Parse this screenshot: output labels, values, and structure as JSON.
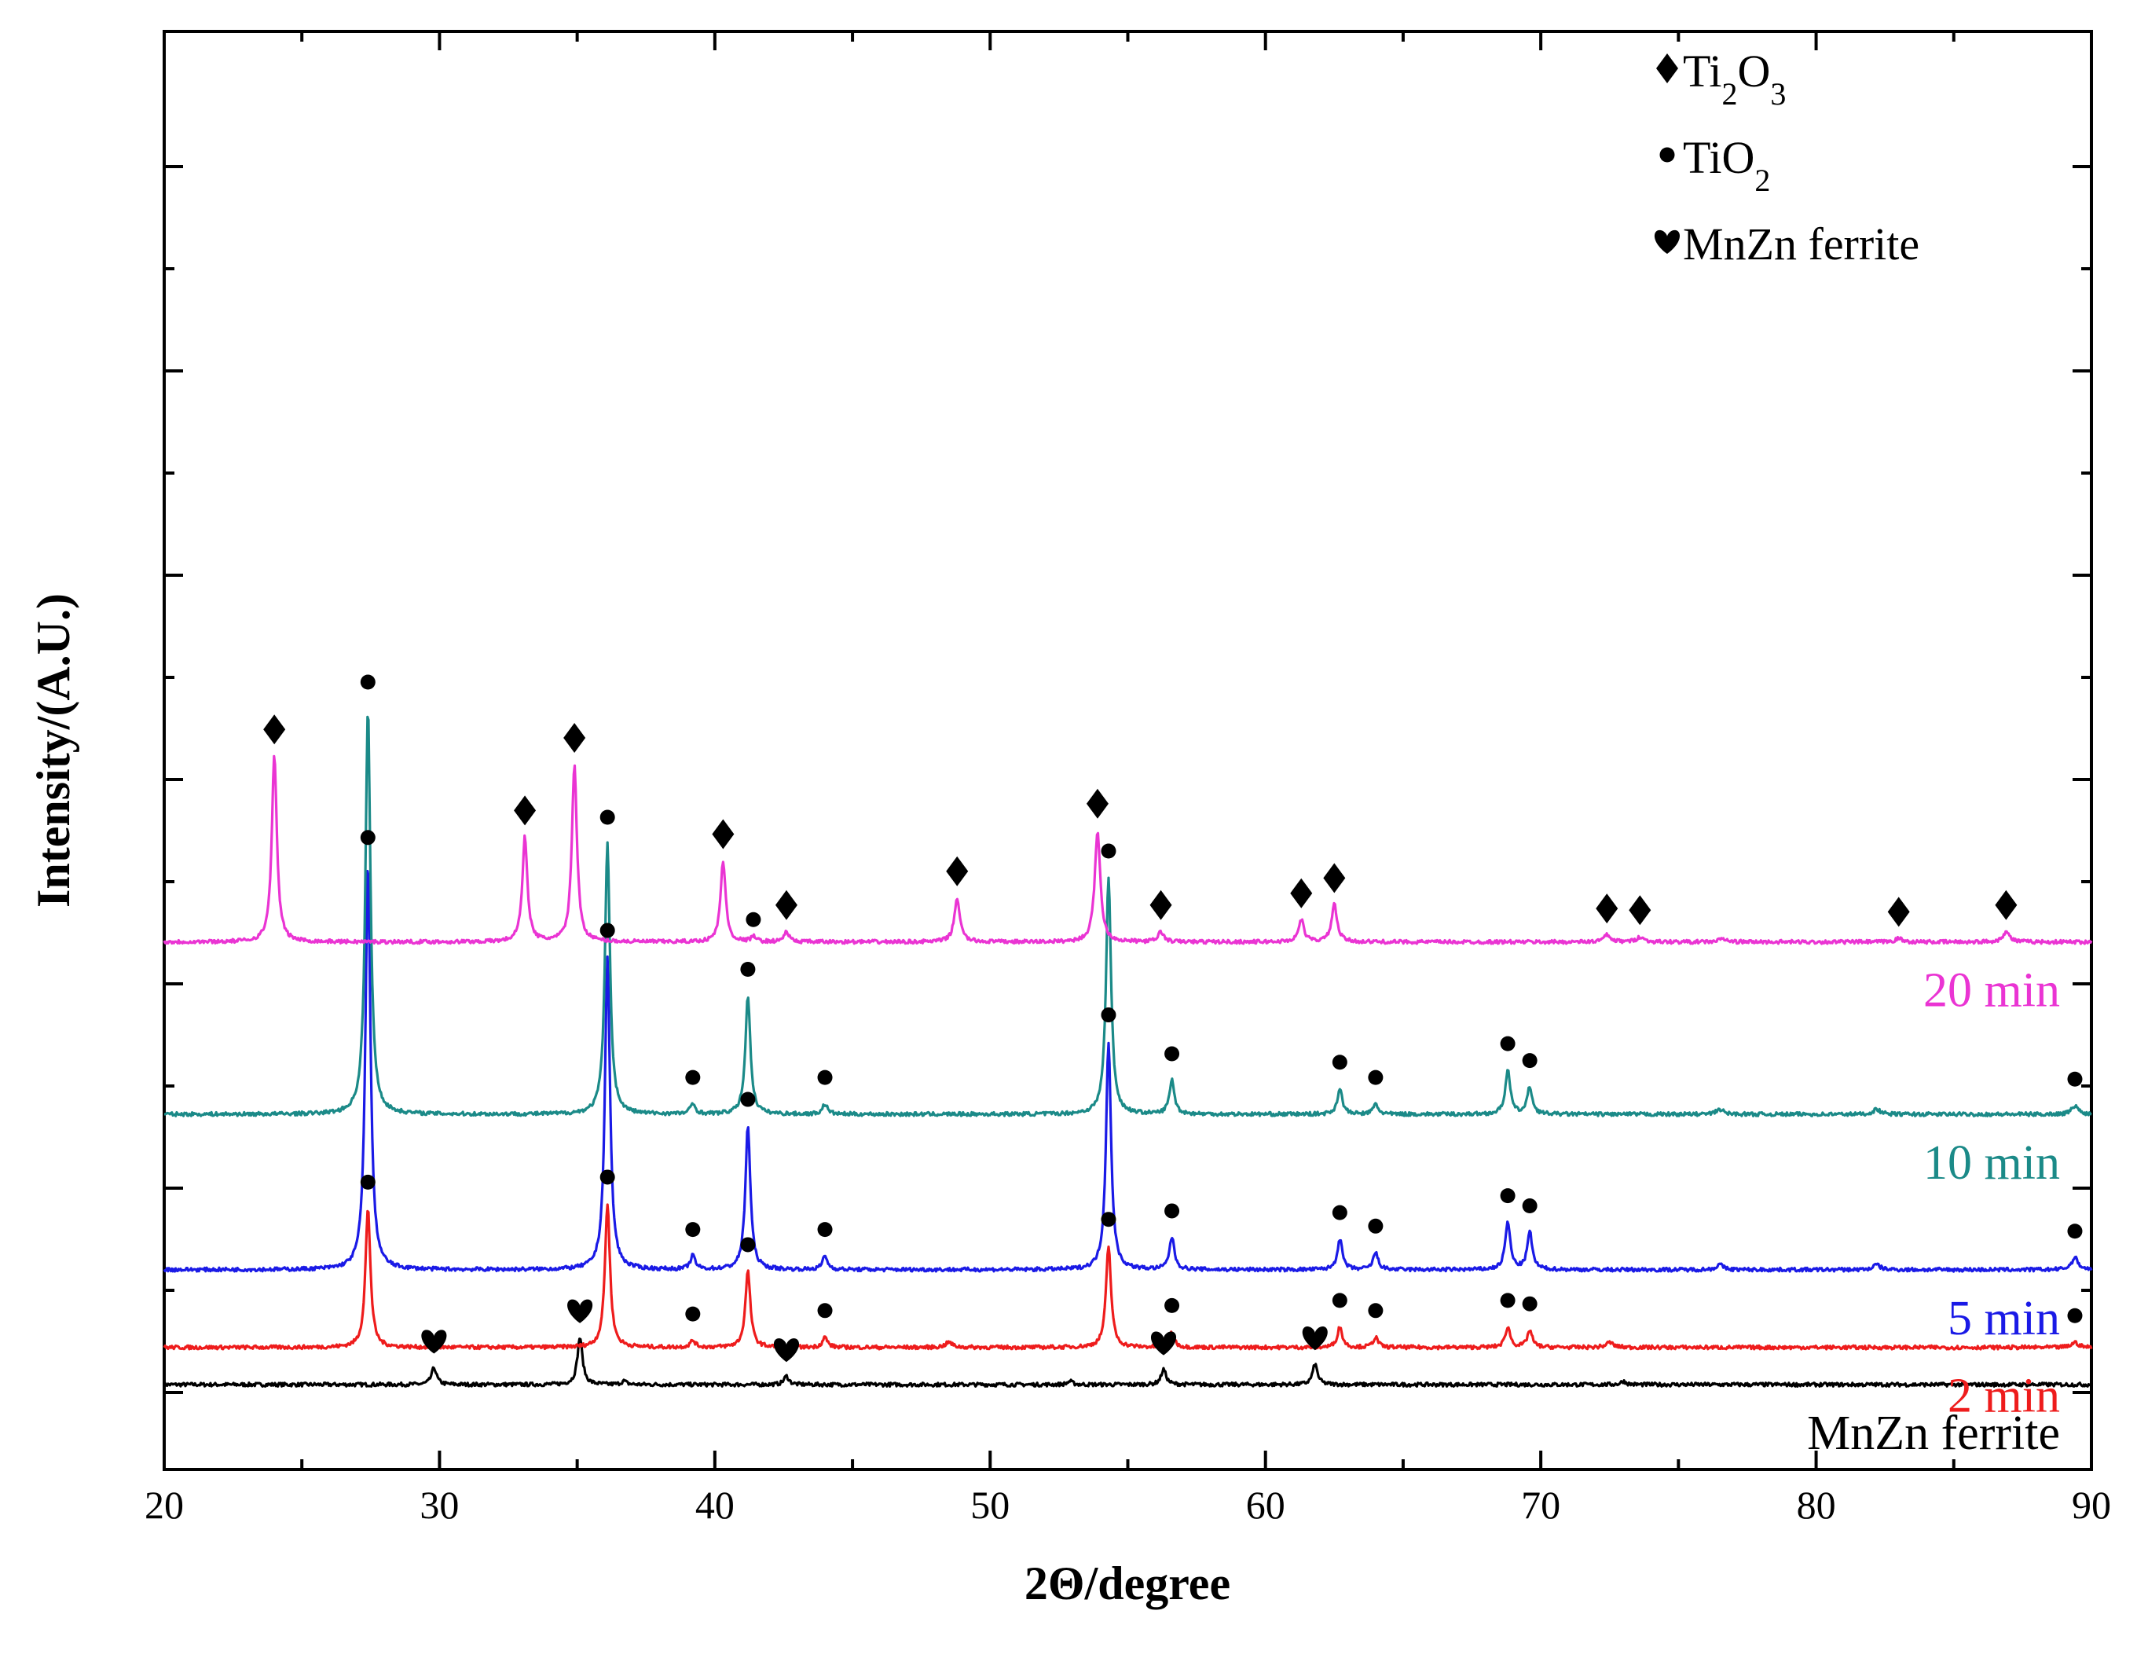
{
  "chart_data": {
    "type": "line",
    "xlabel": "2Θ/degree",
    "ylabel": "Intensity/(A.U.)",
    "xlim": [
      20,
      90
    ],
    "x_ticks": [
      20,
      30,
      40,
      50,
      60,
      70,
      80,
      90
    ],
    "y_tick_labels_shown": false,
    "legend": {
      "placement": "top-right",
      "entries": [
        {
          "marker": "diamond",
          "text": "Ti",
          "sub1": "2",
          "text2": "O",
          "sub2": "3"
        },
        {
          "marker": "circle",
          "text": "TiO",
          "sub1": "2",
          "text2": "",
          "sub2": ""
        },
        {
          "marker": "heart",
          "text": "MnZn ferrite",
          "sub1": "",
          "text2": "",
          "sub2": ""
        }
      ]
    },
    "series": [
      {
        "name": "MnZn ferrite",
        "color": "#000000",
        "marker": "heart",
        "baseline": 0.0,
        "peaks": [
          {
            "x": 29.8,
            "h": 0.1,
            "w": 0.11,
            "marked": true
          },
          {
            "x": 35.1,
            "h": 0.28,
            "w": 0.11,
            "marked": true
          },
          {
            "x": 36.7,
            "h": 0.02,
            "w": 0.11,
            "marked": false
          },
          {
            "x": 42.6,
            "h": 0.05,
            "w": 0.11,
            "marked": true
          },
          {
            "x": 52.9,
            "h": 0.02,
            "w": 0.11,
            "marked": false
          },
          {
            "x": 56.3,
            "h": 0.09,
            "w": 0.11,
            "marked": true
          },
          {
            "x": 61.8,
            "h": 0.12,
            "w": 0.11,
            "marked": true
          },
          {
            "x": 73.0,
            "h": 0.02,
            "w": 0.11,
            "marked": false
          }
        ]
      },
      {
        "name": "2 min",
        "color": "#ee1c1c",
        "marker": "circle",
        "baseline": 0.22,
        "peaks": [
          {
            "x": 27.4,
            "h": 0.82,
            "w": 0.11,
            "marked": true
          },
          {
            "x": 36.1,
            "h": 0.85,
            "w": 0.11,
            "marked": true
          },
          {
            "x": 39.2,
            "h": 0.04,
            "w": 0.11,
            "marked": true
          },
          {
            "x": 41.2,
            "h": 0.45,
            "w": 0.11,
            "marked": true
          },
          {
            "x": 44.0,
            "h": 0.06,
            "w": 0.11,
            "marked": true
          },
          {
            "x": 48.5,
            "h": 0.03,
            "w": 0.15,
            "marked": false
          },
          {
            "x": 54.3,
            "h": 0.6,
            "w": 0.11,
            "marked": true
          },
          {
            "x": 56.6,
            "h": 0.09,
            "w": 0.11,
            "marked": true
          },
          {
            "x": 62.7,
            "h": 0.12,
            "w": 0.11,
            "marked": true
          },
          {
            "x": 64.0,
            "h": 0.06,
            "w": 0.11,
            "marked": true
          },
          {
            "x": 68.8,
            "h": 0.12,
            "w": 0.11,
            "marked": true
          },
          {
            "x": 69.6,
            "h": 0.1,
            "w": 0.11,
            "marked": true
          },
          {
            "x": 72.5,
            "h": 0.03,
            "w": 0.15,
            "marked": false
          },
          {
            "x": 89.4,
            "h": 0.03,
            "w": 0.15,
            "marked": true
          }
        ]
      },
      {
        "name": "5 min",
        "color": "#1a1ae6",
        "marker": "circle",
        "baseline": 0.68,
        "peaks": [
          {
            "x": 27.4,
            "h": 2.4,
            "w": 0.11,
            "marked": true
          },
          {
            "x": 36.1,
            "h": 1.85,
            "w": 0.11,
            "marked": true
          },
          {
            "x": 39.2,
            "h": 0.08,
            "w": 0.11,
            "marked": true
          },
          {
            "x": 41.2,
            "h": 0.85,
            "w": 0.11,
            "marked": true
          },
          {
            "x": 44.0,
            "h": 0.08,
            "w": 0.11,
            "marked": true
          },
          {
            "x": 54.3,
            "h": 1.35,
            "w": 0.11,
            "marked": true
          },
          {
            "x": 56.6,
            "h": 0.19,
            "w": 0.11,
            "marked": true
          },
          {
            "x": 62.7,
            "h": 0.18,
            "w": 0.11,
            "marked": true
          },
          {
            "x": 64.0,
            "h": 0.1,
            "w": 0.11,
            "marked": true
          },
          {
            "x": 68.8,
            "h": 0.28,
            "w": 0.11,
            "marked": true
          },
          {
            "x": 69.6,
            "h": 0.22,
            "w": 0.11,
            "marked": true
          },
          {
            "x": 76.5,
            "h": 0.03,
            "w": 0.15,
            "marked": false
          },
          {
            "x": 82.2,
            "h": 0.03,
            "w": 0.15,
            "marked": false
          },
          {
            "x": 89.4,
            "h": 0.07,
            "w": 0.15,
            "marked": true
          }
        ]
      },
      {
        "name": "10 min",
        "color": "#1b8a88",
        "marker": "circle",
        "baseline": 1.6,
        "peaks": [
          {
            "x": 27.4,
            "h": 2.4,
            "w": 0.11,
            "marked": true
          },
          {
            "x": 36.1,
            "h": 1.6,
            "w": 0.11,
            "marked": true
          },
          {
            "x": 39.2,
            "h": 0.06,
            "w": 0.11,
            "marked": true
          },
          {
            "x": 41.2,
            "h": 0.7,
            "w": 0.11,
            "marked": true
          },
          {
            "x": 44.0,
            "h": 0.06,
            "w": 0.11,
            "marked": true
          },
          {
            "x": 54.3,
            "h": 1.4,
            "w": 0.11,
            "marked": true
          },
          {
            "x": 56.6,
            "h": 0.2,
            "w": 0.11,
            "marked": true
          },
          {
            "x": 62.7,
            "h": 0.15,
            "w": 0.11,
            "marked": true
          },
          {
            "x": 64.0,
            "h": 0.06,
            "w": 0.11,
            "marked": true
          },
          {
            "x": 68.8,
            "h": 0.26,
            "w": 0.11,
            "marked": true
          },
          {
            "x": 69.6,
            "h": 0.16,
            "w": 0.11,
            "marked": true
          },
          {
            "x": 76.5,
            "h": 0.03,
            "w": 0.15,
            "marked": false
          },
          {
            "x": 82.2,
            "h": 0.03,
            "w": 0.15,
            "marked": false
          },
          {
            "x": 89.4,
            "h": 0.05,
            "w": 0.15,
            "marked": true
          }
        ]
      },
      {
        "name": "20 min",
        "color": "#ea34d3",
        "marker": "diamond",
        "baseline": 2.62,
        "peaks": [
          {
            "x": 24.0,
            "h": 1.1,
            "w": 0.11,
            "marked": true
          },
          {
            "x": 33.1,
            "h": 0.62,
            "w": 0.11,
            "marked": true
          },
          {
            "x": 34.9,
            "h": 1.05,
            "w": 0.11,
            "marked": true
          },
          {
            "x": 40.3,
            "h": 0.48,
            "w": 0.11,
            "marked": true
          },
          {
            "x": 41.4,
            "h": 0.03,
            "w": 0.11,
            "marked": false
          },
          {
            "x": 42.6,
            "h": 0.06,
            "w": 0.11,
            "marked": true
          },
          {
            "x": 48.8,
            "h": 0.26,
            "w": 0.12,
            "marked": true
          },
          {
            "x": 53.9,
            "h": 0.66,
            "w": 0.12,
            "marked": true
          },
          {
            "x": 56.2,
            "h": 0.06,
            "w": 0.12,
            "marked": true
          },
          {
            "x": 61.3,
            "h": 0.13,
            "w": 0.12,
            "marked": true
          },
          {
            "x": 62.5,
            "h": 0.22,
            "w": 0.12,
            "marked": true
          },
          {
            "x": 72.4,
            "h": 0.04,
            "w": 0.15,
            "marked": true
          },
          {
            "x": 73.6,
            "h": 0.03,
            "w": 0.15,
            "marked": true
          },
          {
            "x": 76.6,
            "h": 0.02,
            "w": 0.15,
            "marked": false
          },
          {
            "x": 83.0,
            "h": 0.02,
            "w": 0.15,
            "marked": true
          },
          {
            "x": 86.9,
            "h": 0.06,
            "w": 0.15,
            "marked": true
          }
        ]
      }
    ],
    "annotations": [
      {
        "type": "marker",
        "series": "20 min",
        "x": 41.4,
        "marker": "circle"
      }
    ]
  }
}
